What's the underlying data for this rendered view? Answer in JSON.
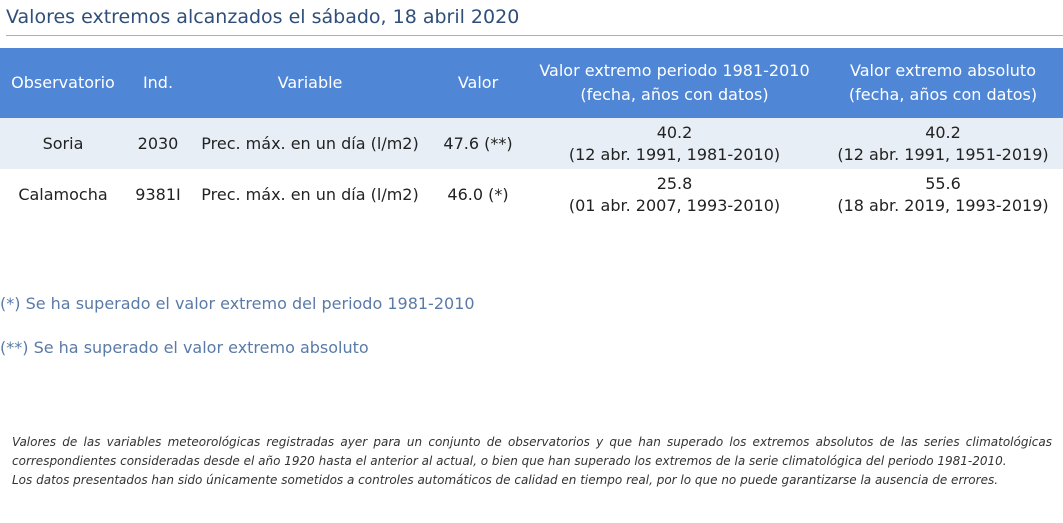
{
  "title": "Valores extremos alcanzados el sábado, 18 abril 2020",
  "table": {
    "headers": {
      "observatorio": "Observatorio",
      "ind": "Ind.",
      "variable": "Variable",
      "valor": "Valor",
      "extremo_periodo_line1": "Valor extremo periodo 1981-2010",
      "extremo_periodo_line2": "(fecha, años con datos)",
      "extremo_absoluto_line1": "Valor extremo absoluto",
      "extremo_absoluto_line2": "(fecha, años con datos)"
    },
    "rows": [
      {
        "observatorio": "Soria",
        "ind": "2030",
        "variable": "Prec. máx. en un día (l/m2)",
        "valor": "47.6 (**)",
        "periodo_valor": "40.2",
        "periodo_fecha": "(12 abr. 1991, 1981-2010)",
        "absoluto_valor": "40.2",
        "absoluto_fecha": "(12 abr. 1991, 1951-2019)"
      },
      {
        "observatorio": "Calamocha",
        "ind": "9381I",
        "variable": "Prec. máx. en un día (l/m2)",
        "valor": "46.0 (*)",
        "periodo_valor": "25.8",
        "periodo_fecha": "(01 abr. 2007, 1993-2010)",
        "absoluto_valor": "55.6",
        "absoluto_fecha": "(18 abr. 2019, 1993-2019)"
      }
    ]
  },
  "notes": {
    "single": "(*) Se ha superado el valor extremo del periodo 1981-2010",
    "double": "(**) Se ha superado el valor extremo absoluto"
  },
  "footer": {
    "line1": "Valores de las variables meteorológicas registradas ayer para un conjunto de observatorios y que han superado los extremos absolutos de las series climatológicas",
    "line2": "correspondientes consideradas desde el año 1920 hasta el anterior al actual, o bien que han superado los extremos de la serie climatológica del periodo 1981-2010.",
    "line3": "Los datos presentados han sido únicamente sometidos a controles automáticos de calidad en tiempo real, por lo que no puede garantizarse la ausencia de errores."
  }
}
